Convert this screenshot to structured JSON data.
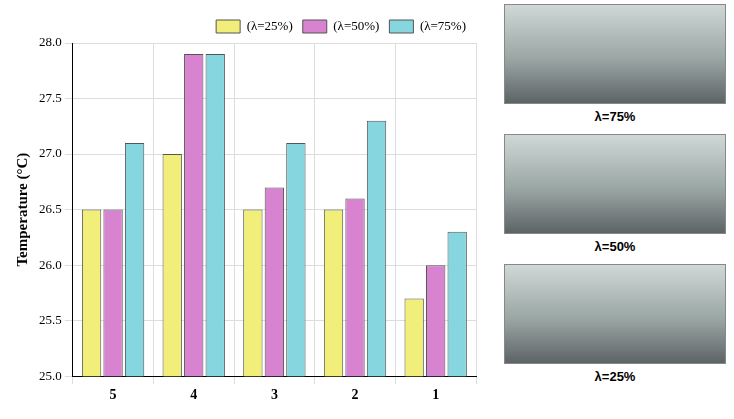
{
  "chart_data": {
    "type": "bar",
    "y_label": "Temperature (°C)",
    "categories": [
      "5",
      "4",
      "3",
      "2",
      "1"
    ],
    "series": [
      {
        "name": "(λ=25%)",
        "color": "#f2ee7a",
        "values": [
          26.5,
          27.0,
          26.5,
          26.5,
          25.7
        ]
      },
      {
        "name": "(λ=50%)",
        "color": "#d883cf",
        "values": [
          26.5,
          27.9,
          26.7,
          26.6,
          26.0
        ]
      },
      {
        "name": "(λ=75%)",
        "color": "#86d6df",
        "values": [
          27.1,
          27.9,
          27.1,
          27.3,
          26.3
        ]
      }
    ],
    "ylim": [
      25.0,
      28.0
    ],
    "yticks": [
      {
        "value": 25,
        "label": "25.0"
      },
      25.5,
      {
        "value": 26,
        "label": "26.0"
      },
      26.5,
      {
        "value": 27,
        "label": "27.0"
      },
      27.5,
      {
        "value": 28,
        "label": "28.0"
      }
    ],
    "grid": true,
    "legend": "top right"
  },
  "photos": [
    {
      "caption": "λ=75%"
    },
    {
      "caption": "λ=50%"
    },
    {
      "caption": "λ=25%"
    }
  ]
}
